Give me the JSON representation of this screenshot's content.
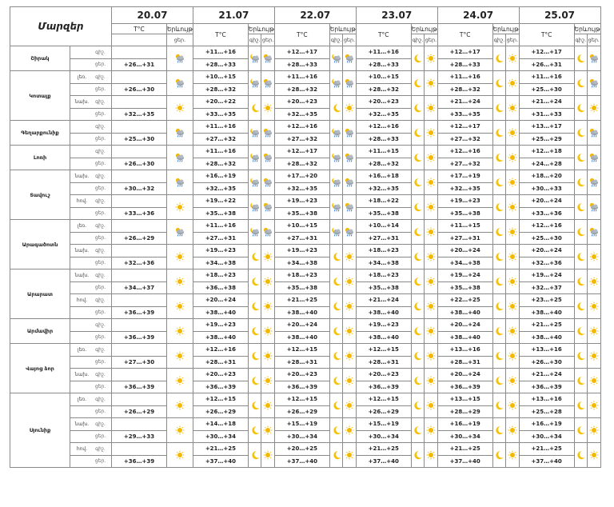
{
  "header": {
    "corner_label": "Մարզեր",
    "temp_label": "T°C",
    "weather_label": "Երևույթ",
    "night_short": "գիշ.",
    "day_short": "ցեր.",
    "dates": [
      "20.07",
      "21.07",
      "22.07",
      "23.07",
      "24.07",
      "25.07"
    ]
  },
  "icon_legend": {
    "sun": "sun-icon",
    "moon": "moon-icon",
    "cloud_sun_rain": "cloud-sun-rain-icon",
    "cloud_moon_rain": "cloud-moon-rain-icon"
  },
  "regions": [
    {
      "name": "Շիրակ",
      "subs": [
        {
          "sub": "",
          "n": [
            "",
            "+11…+16",
            "+12…+17",
            "+11…+16",
            "+12…+17",
            "+12…+17"
          ],
          "d": [
            "+26…+31",
            "+28…+33",
            "+28…+33",
            "+28…+33",
            "+28…+33",
            "+26…+31"
          ],
          "ni": [
            "",
            "cmr",
            "cmr",
            "moon",
            "moon",
            "moon"
          ],
          "di": [
            "csr",
            "csr",
            "csr",
            "sun",
            "sun",
            "csr"
          ]
        }
      ]
    },
    {
      "name": "Կոտայք",
      "subs": [
        {
          "sub": "լեռ.",
          "n": [
            "",
            "+10…+15",
            "+11…+16",
            "+10…+15",
            "+11…+16",
            "+11…+16"
          ],
          "d": [
            "+26…+30",
            "+28…+32",
            "+28…+32",
            "+28…+32",
            "+28…+32",
            "+25…+30"
          ],
          "ni": [
            "",
            "cmr",
            "cmr",
            "moon",
            "moon",
            "moon"
          ],
          "di": [
            "csr",
            "csr",
            "csr",
            "sun",
            "sun",
            "csr"
          ]
        },
        {
          "sub": "նախ.",
          "n": [
            "",
            "+20…+22",
            "+20…+23",
            "+20…+23",
            "+21…+24",
            "+21…+24"
          ],
          "d": [
            "+32…+35",
            "+33…+35",
            "+32…+35",
            "+32…+35",
            "+33…+35",
            "+31…+33"
          ],
          "ni": [
            "",
            "moon",
            "moon",
            "moon",
            "moon",
            "moon"
          ],
          "di": [
            "sun",
            "sun",
            "sun",
            "sun",
            "sun",
            "sun"
          ]
        }
      ]
    },
    {
      "name": "Գեղարքունիք",
      "subs": [
        {
          "sub": "",
          "n": [
            "",
            "+11…+16",
            "+12…+16",
            "+12…+16",
            "+12…+17",
            "+13…+17"
          ],
          "d": [
            "+25…+30",
            "+27…+32",
            "+27…+32",
            "+28…+33",
            "+27…+32",
            "+25…+29"
          ],
          "ni": [
            "",
            "cmr",
            "cmr",
            "moon",
            "moon",
            "moon"
          ],
          "di": [
            "csr",
            "csr",
            "csr",
            "sun",
            "sun",
            "csr"
          ]
        }
      ]
    },
    {
      "name": "Լոռի",
      "subs": [
        {
          "sub": "",
          "n": [
            "",
            "+11…+16",
            "+12…+17",
            "+11…+15",
            "+12…+16",
            "+12…+18"
          ],
          "d": [
            "+26…+30",
            "+28…+32",
            "+28…+32",
            "+28…+32",
            "+27…+32",
            "+24…+28"
          ],
          "ni": [
            "",
            "cmr",
            "cmr",
            "moon",
            "moon",
            "moon"
          ],
          "di": [
            "csr",
            "csr",
            "csr",
            "sun",
            "sun",
            "csr"
          ]
        }
      ]
    },
    {
      "name": "Տավուշ",
      "subs": [
        {
          "sub": "նախ.",
          "n": [
            "",
            "+16…+19",
            "+17…+20",
            "+16…+18",
            "+17…+19",
            "+18…+20"
          ],
          "d": [
            "+30…+32",
            "+32…+35",
            "+32…+35",
            "+32…+35",
            "+32…+35",
            "+30…+33"
          ],
          "ni": [
            "",
            "cmr",
            "cmr",
            "moon",
            "moon",
            "moon"
          ],
          "di": [
            "csr",
            "csr",
            "csr",
            "sun",
            "sun",
            "csr"
          ]
        },
        {
          "sub": "հով.",
          "n": [
            "",
            "+19…+22",
            "+19…+23",
            "+18…+22",
            "+19…+23",
            "+20…+24"
          ],
          "d": [
            "+33…+36",
            "+35…+38",
            "+35…+38",
            "+35…+38",
            "+35…+38",
            "+33…+36"
          ],
          "ni": [
            "",
            "cmr",
            "cmr",
            "moon",
            "moon",
            "moon"
          ],
          "di": [
            "sun",
            "csr",
            "csr",
            "sun",
            "sun",
            "csr"
          ]
        }
      ]
    },
    {
      "name": "Արագածոտն",
      "subs": [
        {
          "sub": "լեռ.",
          "n": [
            "",
            "+11…+16",
            "+10…+15",
            "+10…+14",
            "+11…+15",
            "+12…+16"
          ],
          "d": [
            "+26…+29",
            "+27…+31",
            "+27…+31",
            "+27…+31",
            "+27…+31",
            "+25…+30"
          ],
          "ni": [
            "",
            "cmr",
            "cmr",
            "moon",
            "moon",
            "moon"
          ],
          "di": [
            "csr",
            "csr",
            "csr",
            "sun",
            "sun",
            "csr"
          ]
        },
        {
          "sub": "նախ.",
          "n": [
            "",
            "+19…+23",
            "+19…+23",
            "+18…+23",
            "+20…+24",
            "+20…+24"
          ],
          "d": [
            "+32…+36",
            "+34…+38",
            "+34…+38",
            "+34…+38",
            "+34…+38",
            "+32…+36"
          ],
          "ni": [
            "",
            "moon",
            "moon",
            "moon",
            "moon",
            "moon"
          ],
          "di": [
            "sun",
            "sun",
            "sun",
            "sun",
            "sun",
            "sun"
          ]
        }
      ]
    },
    {
      "name": "Արարատ",
      "subs": [
        {
          "sub": "նախ.",
          "n": [
            "",
            "+18…+23",
            "+18…+23",
            "+18…+23",
            "+19…+24",
            "+19…+24"
          ],
          "d": [
            "+34…+37",
            "+36…+38",
            "+35…+38",
            "+35…+38",
            "+35…+38",
            "+32…+37"
          ],
          "ni": [
            "",
            "moon",
            "moon",
            "moon",
            "moon",
            "moon"
          ],
          "di": [
            "sun",
            "sun",
            "sun",
            "sun",
            "sun",
            "sun"
          ]
        },
        {
          "sub": "հով.",
          "n": [
            "",
            "+20…+24",
            "+21…+25",
            "+21…+24",
            "+22…+25",
            "+23…+25"
          ],
          "d": [
            "+36…+39",
            "+38…+40",
            "+38…+40",
            "+38…+40",
            "+38…+40",
            "+38…+40"
          ],
          "ni": [
            "",
            "moon",
            "moon",
            "moon",
            "moon",
            "moon"
          ],
          "di": [
            "sun",
            "sun",
            "sun",
            "sun",
            "sun",
            "sun"
          ]
        }
      ]
    },
    {
      "name": "Արմավիր",
      "subs": [
        {
          "sub": "",
          "n": [
            "",
            "+19…+23",
            "+20…+24",
            "+19…+23",
            "+20…+24",
            "+21…+25"
          ],
          "d": [
            "+36…+39",
            "+38…+40",
            "+38…+40",
            "+38…+40",
            "+38…+40",
            "+38…+40"
          ],
          "ni": [
            "",
            "moon",
            "moon",
            "moon",
            "moon",
            "moon"
          ],
          "di": [
            "sun",
            "sun",
            "sun",
            "sun",
            "sun",
            "sun"
          ]
        }
      ]
    },
    {
      "name": "Վայոց ձոր",
      "subs": [
        {
          "sub": "լեռ.",
          "n": [
            "",
            "+12…+16",
            "+12…+15",
            "+12…+15",
            "+13…+16",
            "+13…+16"
          ],
          "d": [
            "+27…+30",
            "+28…+31",
            "+28…+31",
            "+28…+31",
            "+28…+31",
            "+26…+30"
          ],
          "ni": [
            "",
            "moon",
            "moon",
            "moon",
            "moon",
            "moon"
          ],
          "di": [
            "sun",
            "sun",
            "sun",
            "sun",
            "sun",
            "sun"
          ]
        },
        {
          "sub": "նախ.",
          "n": [
            "",
            "+20…+23",
            "+20…+23",
            "+20…+23",
            "+20…+24",
            "+21…+24"
          ],
          "d": [
            "+36…+39",
            "+36…+39",
            "+36…+39",
            "+36…+39",
            "+36…+39",
            "+36…+39"
          ],
          "ni": [
            "",
            "moon",
            "moon",
            "moon",
            "moon",
            "moon"
          ],
          "di": [
            "sun",
            "sun",
            "sun",
            "sun",
            "sun",
            "sun"
          ]
        }
      ]
    },
    {
      "name": "Սյունիք",
      "subs": [
        {
          "sub": "լեռ.",
          "n": [
            "",
            "+12…+15",
            "+12…+15",
            "+12…+15",
            "+13…+15",
            "+13…+16"
          ],
          "d": [
            "+26…+29",
            "+26…+29",
            "+26…+29",
            "+26…+29",
            "+28…+29",
            "+25…+28"
          ],
          "ni": [
            "",
            "moon",
            "moon",
            "moon",
            "moon",
            "moon"
          ],
          "di": [
            "sun",
            "sun",
            "sun",
            "sun",
            "sun",
            "sun"
          ]
        },
        {
          "sub": "նախ.",
          "n": [
            "",
            "+14…+18",
            "+15…+19",
            "+15…+19",
            "+16…+19",
            "+16…+19"
          ],
          "d": [
            "+29…+33",
            "+30…+34",
            "+30…+34",
            "+30…+34",
            "+30…+34",
            "+30…+34"
          ],
          "ni": [
            "",
            "moon",
            "moon",
            "moon",
            "moon",
            "moon"
          ],
          "di": [
            "sun",
            "sun",
            "sun",
            "sun",
            "sun",
            "sun"
          ]
        },
        {
          "sub": "հով.",
          "n": [
            "",
            "+21…+25",
            "+20…+25",
            "+21…+25",
            "+21…+25",
            "+21…+25"
          ],
          "d": [
            "+36…+39",
            "+37…+40",
            "+37…+40",
            "+37…+40",
            "+37…+40",
            "+37…+40"
          ],
          "ni": [
            "",
            "moon",
            "moon",
            "moon",
            "moon",
            "moon"
          ],
          "di": [
            "sun",
            "sun",
            "sun",
            "sun",
            "sun",
            "sun"
          ]
        }
      ]
    }
  ]
}
